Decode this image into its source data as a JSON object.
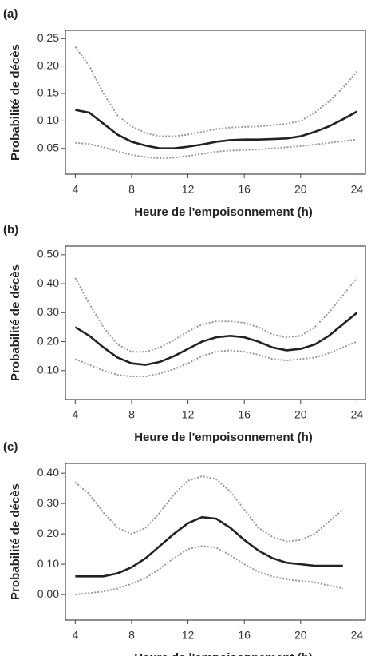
{
  "chart_data": [
    {
      "type": "line",
      "panel_label": "(a)",
      "ylabel": "Probabilité de décès",
      "xlabel": "Heure de l'empoisonnement (h)",
      "x": [
        4,
        5,
        6,
        7,
        8,
        9,
        10,
        11,
        12,
        13,
        14,
        15,
        16,
        17,
        18,
        19,
        20,
        21,
        22,
        23,
        24
      ],
      "series": [
        {
          "color": "#999999",
          "style": "dotted",
          "values": [
            0.235,
            0.2,
            0.15,
            0.11,
            0.09,
            0.078,
            0.072,
            0.072,
            0.075,
            0.08,
            0.085,
            0.088,
            0.089,
            0.09,
            0.092,
            0.095,
            0.1,
            0.115,
            0.135,
            0.16,
            0.19
          ]
        },
        {
          "color": "#222222",
          "style": "solid",
          "values": [
            0.12,
            0.115,
            0.095,
            0.075,
            0.062,
            0.055,
            0.05,
            0.05,
            0.053,
            0.057,
            0.062,
            0.065,
            0.066,
            0.066,
            0.067,
            0.068,
            0.072,
            0.08,
            0.09,
            0.103,
            0.117
          ]
        },
        {
          "color": "#999999",
          "style": "dotted",
          "values": [
            0.06,
            0.058,
            0.052,
            0.045,
            0.038,
            0.034,
            0.032,
            0.033,
            0.036,
            0.04,
            0.044,
            0.046,
            0.047,
            0.048,
            0.05,
            0.052,
            0.054,
            0.057,
            0.06,
            0.063,
            0.066
          ]
        }
      ],
      "xlim": [
        3.3,
        24.6
      ],
      "xticks": [
        4,
        8,
        12,
        16,
        20,
        24
      ],
      "ylim": [
        0.003,
        0.265
      ],
      "yticks": [
        0.05,
        {
          "value": 0.1,
          "label": "0.10"
        },
        0.15,
        {
          "value": 0.2,
          "label": "0.20"
        },
        0.25
      ]
    },
    {
      "type": "line",
      "panel_label": "(b)",
      "ylabel": "Probabilité de décès",
      "xlabel": "Heure de l'empoisonnement (h)",
      "x": [
        4,
        5,
        6,
        7,
        8,
        9,
        10,
        11,
        12,
        13,
        14,
        15,
        16,
        17,
        18,
        19,
        20,
        21,
        22,
        23,
        24
      ],
      "series": [
        {
          "color": "#999999",
          "style": "dotted",
          "values": [
            0.42,
            0.33,
            0.25,
            0.19,
            0.165,
            0.165,
            0.18,
            0.205,
            0.235,
            0.26,
            0.27,
            0.27,
            0.265,
            0.25,
            0.225,
            0.215,
            0.22,
            0.25,
            0.3,
            0.36,
            0.42
          ]
        },
        {
          "color": "#222222",
          "style": "solid",
          "values": [
            0.25,
            0.22,
            0.18,
            0.145,
            0.125,
            0.12,
            0.13,
            0.15,
            0.175,
            0.2,
            0.215,
            0.22,
            0.215,
            0.2,
            0.18,
            0.17,
            0.175,
            0.19,
            0.22,
            0.26,
            0.3
          ]
        },
        {
          "color": "#999999",
          "style": "dotted",
          "values": [
            0.14,
            0.12,
            0.1,
            0.085,
            0.08,
            0.08,
            0.09,
            0.105,
            0.125,
            0.15,
            0.165,
            0.17,
            0.165,
            0.155,
            0.14,
            0.135,
            0.14,
            0.145,
            0.16,
            0.18,
            0.2
          ]
        }
      ],
      "xlim": [
        3.3,
        24.6
      ],
      "xticks": [
        4,
        8,
        12,
        16,
        20,
        24
      ],
      "ylim": [
        0,
        0.53
      ],
      "yticks": [
        {
          "value": 0.1,
          "label": "0.10"
        },
        {
          "value": 0.2,
          "label": "0.20"
        },
        {
          "value": 0.3,
          "label": "0.30"
        },
        {
          "value": 0.4,
          "label": "0.40"
        },
        {
          "value": 0.5,
          "label": "0.50"
        }
      ]
    },
    {
      "type": "line",
      "panel_label": "(c)",
      "ylabel": "Probabilité de décès",
      "xlabel": "Heure de l'empoisonnement (h)",
      "x": [
        4,
        5,
        6,
        7,
        8,
        9,
        10,
        11,
        12,
        13,
        14,
        15,
        16,
        17,
        18,
        19,
        20,
        21,
        22,
        23
      ],
      "series": [
        {
          "color": "#999999",
          "style": "dotted",
          "values": [
            0.37,
            0.33,
            0.27,
            0.22,
            0.2,
            0.22,
            0.27,
            0.33,
            0.375,
            0.39,
            0.38,
            0.34,
            0.28,
            0.22,
            0.19,
            0.175,
            0.18,
            0.2,
            0.24,
            0.28
          ]
        },
        {
          "color": "#222222",
          "style": "solid",
          "values": [
            0.06,
            0.06,
            0.06,
            0.07,
            0.09,
            0.12,
            0.16,
            0.2,
            0.235,
            0.255,
            0.25,
            0.22,
            0.18,
            0.145,
            0.12,
            0.105,
            0.1,
            0.095,
            0.095,
            0.095
          ]
        },
        {
          "color": "#999999",
          "style": "dotted",
          "values": [
            0.0,
            0.005,
            0.01,
            0.02,
            0.035,
            0.055,
            0.085,
            0.12,
            0.15,
            0.16,
            0.155,
            0.13,
            0.1,
            0.075,
            0.06,
            0.05,
            0.045,
            0.04,
            0.03,
            0.02
          ]
        }
      ],
      "xlim": [
        3.3,
        24.6
      ],
      "xticks": [
        4,
        8,
        12,
        16,
        20,
        24
      ],
      "ylim": [
        -0.084,
        0.432
      ],
      "yticks": [
        {
          "value": 0,
          "label": "0.00"
        },
        {
          "value": 0.1,
          "label": "0.10"
        },
        {
          "value": 0.2,
          "label": "0.20"
        },
        {
          "value": 0.3,
          "label": "0.30"
        },
        {
          "value": 0.4,
          "label": "0.40"
        }
      ]
    }
  ]
}
